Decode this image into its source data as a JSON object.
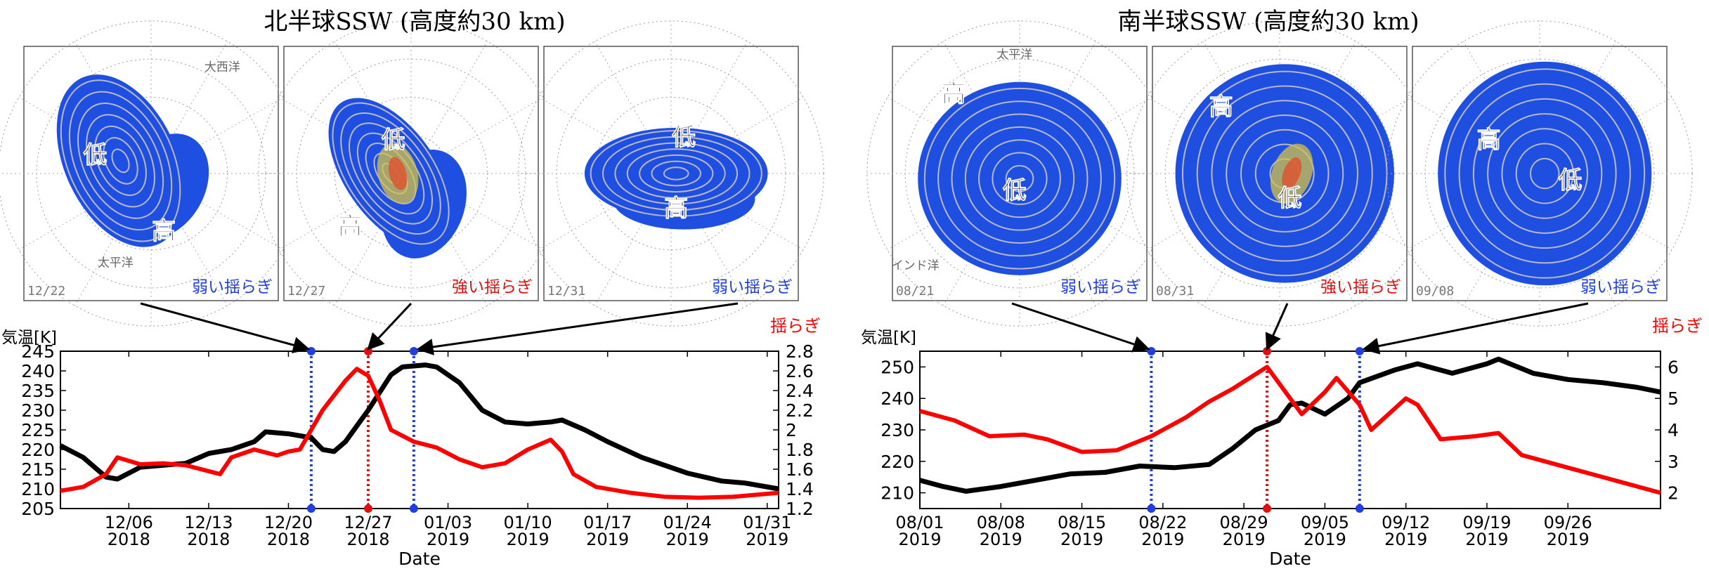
{
  "figure": {
    "labels": {
      "shake": "揺らぎ",
      "temp": "気温[K]",
      "date": "Date",
      "weak": "弱い揺らぎ",
      "strong": "強い揺らぎ",
      "low": "低",
      "high": "高"
    },
    "colors": {
      "temperature": "#000000",
      "fluctuation": "#ff0000",
      "weak": "#1f3fe0",
      "strong": "#e01010",
      "map_fill": "#1e4fe0"
    }
  },
  "panels": [
    {
      "title": "北半球SSW (高度約30 km)",
      "maps": [
        {
          "date": "12/22",
          "strength": "weak",
          "labels": [
            "低",
            "高",
            "大西洋",
            "太平洋"
          ]
        },
        {
          "date": "12/27",
          "strength": "strong",
          "labels": [
            "低",
            "高"
          ]
        },
        {
          "date": "12/31",
          "strength": "weak",
          "labels": [
            "低",
            "高"
          ]
        }
      ]
    },
    {
      "title": "南半球SSW (高度約30 km)",
      "maps": [
        {
          "date": "08/21",
          "strength": "weak",
          "labels": [
            "高",
            "低",
            "太平洋",
            "インド洋"
          ]
        },
        {
          "date": "08/31",
          "strength": "strong",
          "labels": [
            "高",
            "低"
          ]
        },
        {
          "date": "09/08",
          "strength": "weak",
          "labels": [
            "高",
            "低"
          ]
        }
      ]
    }
  ],
  "chart_data": [
    {
      "type": "line",
      "xlabel": "Date",
      "ylabel": "気温[K]",
      "y2label": "揺らぎ",
      "xlim": [
        "2018-11-30",
        "2019-02-01"
      ],
      "ylim": [
        205,
        245
      ],
      "y2lim": [
        1.2,
        2.8
      ],
      "yticks": [
        205,
        210,
        215,
        220,
        225,
        230,
        235,
        240,
        245
      ],
      "y2ticks": [
        1.2,
        1.4,
        1.6,
        1.8,
        2.0,
        2.2,
        2.4,
        2.6,
        2.8
      ],
      "y2ticklabels": [
        "1.2",
        "1.4",
        "1.6",
        "1.8",
        "2",
        "2.2",
        "2.4",
        "2.6",
        "2.8"
      ],
      "xticks": [
        {
          "date": "2018-12-06",
          "label": "12/06",
          "year": "2018"
        },
        {
          "date": "2018-12-13",
          "label": "12/13",
          "year": "2018"
        },
        {
          "date": "2018-12-20",
          "label": "12/20",
          "year": "2018"
        },
        {
          "date": "2018-12-27",
          "label": "12/27",
          "year": "2018"
        },
        {
          "date": "2019-01-03",
          "label": "01/03",
          "year": "2019"
        },
        {
          "date": "2019-01-10",
          "label": "01/10",
          "year": "2019"
        },
        {
          "date": "2019-01-17",
          "label": "01/17",
          "year": "2019"
        },
        {
          "date": "2019-01-24",
          "label": "01/24",
          "year": "2019"
        },
        {
          "date": "2019-01-31",
          "label": "01/31",
          "year": "2019"
        }
      ],
      "markers": [
        {
          "date": "2018-12-22",
          "strength": "weak"
        },
        {
          "date": "2018-12-27",
          "strength": "strong"
        },
        {
          "date": "2018-12-31",
          "strength": "weak"
        }
      ],
      "series": [
        {
          "axis": "left",
          "color": "#000000",
          "points": [
            [
              "2018-11-30",
              221
            ],
            [
              "2018-12-02",
              218
            ],
            [
              "2018-12-04",
              213
            ],
            [
              "2018-12-05",
              212.5
            ],
            [
              "2018-12-07",
              215.5
            ],
            [
              "2018-12-09",
              216
            ],
            [
              "2018-12-11",
              216.5
            ],
            [
              "2018-12-13",
              219
            ],
            [
              "2018-12-15",
              220
            ],
            [
              "2018-12-17",
              222
            ],
            [
              "2018-12-18",
              224.5
            ],
            [
              "2018-12-20",
              224
            ],
            [
              "2018-12-22",
              223
            ],
            [
              "2018-12-23",
              220
            ],
            [
              "2018-12-24",
              219.5
            ],
            [
              "2018-12-25",
              222
            ],
            [
              "2018-12-27",
              230
            ],
            [
              "2018-12-29",
              239
            ],
            [
              "2018-12-30",
              241
            ],
            [
              "2019-01-01",
              241.5
            ],
            [
              "2019-01-02",
              241
            ],
            [
              "2019-01-04",
              237
            ],
            [
              "2019-01-06",
              230
            ],
            [
              "2019-01-08",
              227
            ],
            [
              "2019-01-10",
              226.5
            ],
            [
              "2019-01-12",
              227
            ],
            [
              "2019-01-13",
              227.5
            ],
            [
              "2019-01-15",
              225
            ],
            [
              "2019-01-17",
              222
            ],
            [
              "2019-01-20",
              218
            ],
            [
              "2019-01-24",
              214
            ],
            [
              "2019-01-27",
              212
            ],
            [
              "2019-01-29",
              211.5
            ],
            [
              "2019-02-01",
              210
            ]
          ]
        },
        {
          "axis": "right",
          "color": "#ff0000",
          "points": [
            [
              "2018-11-30",
              1.38
            ],
            [
              "2018-12-02",
              1.42
            ],
            [
              "2018-12-04",
              1.55
            ],
            [
              "2018-12-05",
              1.72
            ],
            [
              "2018-12-07",
              1.65
            ],
            [
              "2018-12-09",
              1.66
            ],
            [
              "2018-12-11",
              1.64
            ],
            [
              "2018-12-13",
              1.58
            ],
            [
              "2018-12-14",
              1.55
            ],
            [
              "2018-12-15",
              1.72
            ],
            [
              "2018-12-17",
              1.8
            ],
            [
              "2018-12-19",
              1.74
            ],
            [
              "2018-12-20",
              1.78
            ],
            [
              "2018-12-21",
              1.8
            ],
            [
              "2018-12-23",
              2.2
            ],
            [
              "2018-12-24",
              2.35
            ],
            [
              "2018-12-25",
              2.5
            ],
            [
              "2018-12-26",
              2.62
            ],
            [
              "2018-12-27",
              2.55
            ],
            [
              "2018-12-28",
              2.3
            ],
            [
              "2018-12-29",
              2.0
            ],
            [
              "2018-12-31",
              1.88
            ],
            [
              "2019-01-02",
              1.82
            ],
            [
              "2019-01-04",
              1.7
            ],
            [
              "2019-01-06",
              1.62
            ],
            [
              "2019-01-08",
              1.66
            ],
            [
              "2019-01-10",
              1.8
            ],
            [
              "2019-01-12",
              1.9
            ],
            [
              "2019-01-13",
              1.78
            ],
            [
              "2019-01-14",
              1.55
            ],
            [
              "2019-01-16",
              1.42
            ],
            [
              "2019-01-19",
              1.36
            ],
            [
              "2019-01-22",
              1.32
            ],
            [
              "2019-01-25",
              1.31
            ],
            [
              "2019-01-28",
              1.32
            ],
            [
              "2019-02-01",
              1.36
            ]
          ]
        }
      ]
    },
    {
      "type": "line",
      "xlabel": "Date",
      "ylabel": "気温[K]",
      "y2label": "揺らぎ",
      "xlim": [
        "2019-08-01",
        "2019-10-04"
      ],
      "ylim": [
        205,
        255
      ],
      "y2lim": [
        1.5,
        6.5
      ],
      "yticks": [
        210,
        220,
        230,
        240,
        250
      ],
      "y2ticks": [
        2,
        3,
        4,
        5,
        6
      ],
      "y2ticklabels": [
        "2",
        "3",
        "4",
        "5",
        "6"
      ],
      "xticks": [
        {
          "date": "2019-08-01",
          "label": "08/01",
          "year": "2019"
        },
        {
          "date": "2019-08-08",
          "label": "08/08",
          "year": "2019"
        },
        {
          "date": "2019-08-15",
          "label": "08/15",
          "year": "2019"
        },
        {
          "date": "2019-08-22",
          "label": "08/22",
          "year": "2019"
        },
        {
          "date": "2019-08-29",
          "label": "08/29",
          "year": "2019"
        },
        {
          "date": "2019-09-05",
          "label": "09/05",
          "year": "2019"
        },
        {
          "date": "2019-09-12",
          "label": "09/12",
          "year": "2019"
        },
        {
          "date": "2019-09-19",
          "label": "09/19",
          "year": "2019"
        },
        {
          "date": "2019-09-26",
          "label": "09/26",
          "year": "2019"
        }
      ],
      "markers": [
        {
          "date": "2019-08-21",
          "strength": "weak"
        },
        {
          "date": "2019-08-31",
          "strength": "strong"
        },
        {
          "date": "2019-09-08",
          "strength": "weak"
        }
      ],
      "series": [
        {
          "axis": "left",
          "color": "#000000",
          "points": [
            [
              "2019-08-01",
              214
            ],
            [
              "2019-08-03",
              212
            ],
            [
              "2019-08-05",
              210.5
            ],
            [
              "2019-08-08",
              212
            ],
            [
              "2019-08-11",
              214
            ],
            [
              "2019-08-14",
              216
            ],
            [
              "2019-08-17",
              216.5
            ],
            [
              "2019-08-20",
              218.5
            ],
            [
              "2019-08-23",
              218
            ],
            [
              "2019-08-26",
              219
            ],
            [
              "2019-08-28",
              224
            ],
            [
              "2019-08-30",
              230
            ],
            [
              "2019-09-01",
              233
            ],
            [
              "2019-09-02",
              238
            ],
            [
              "2019-09-03",
              238.5
            ],
            [
              "2019-09-05",
              235
            ],
            [
              "2019-09-07",
              240
            ],
            [
              "2019-09-08",
              245
            ],
            [
              "2019-09-11",
              249
            ],
            [
              "2019-09-13",
              251
            ],
            [
              "2019-09-16",
              248
            ],
            [
              "2019-09-19",
              251
            ],
            [
              "2019-09-20",
              252.5
            ],
            [
              "2019-09-23",
              248
            ],
            [
              "2019-09-26",
              246
            ],
            [
              "2019-09-29",
              245
            ],
            [
              "2019-10-02",
              243.5
            ],
            [
              "2019-10-04",
              242
            ]
          ]
        },
        {
          "axis": "right",
          "color": "#ff0000",
          "points": [
            [
              "2019-08-01",
              4.6
            ],
            [
              "2019-08-04",
              4.3
            ],
            [
              "2019-08-07",
              3.8
            ],
            [
              "2019-08-10",
              3.85
            ],
            [
              "2019-08-12",
              3.7
            ],
            [
              "2019-08-15",
              3.3
            ],
            [
              "2019-08-18",
              3.35
            ],
            [
              "2019-08-21",
              3.8
            ],
            [
              "2019-08-24",
              4.4
            ],
            [
              "2019-08-26",
              4.9
            ],
            [
              "2019-08-28",
              5.3
            ],
            [
              "2019-08-31",
              6.0
            ],
            [
              "2019-09-02",
              5.0
            ],
            [
              "2019-09-03",
              4.5
            ],
            [
              "2019-09-05",
              5.2
            ],
            [
              "2019-09-06",
              5.65
            ],
            [
              "2019-09-08",
              4.8
            ],
            [
              "2019-09-09",
              4.0
            ],
            [
              "2019-09-12",
              5.0
            ],
            [
              "2019-09-13",
              4.8
            ],
            [
              "2019-09-15",
              3.7
            ],
            [
              "2019-09-18",
              3.8
            ],
            [
              "2019-09-20",
              3.9
            ],
            [
              "2019-09-22",
              3.2
            ],
            [
              "2019-09-26",
              2.8
            ],
            [
              "2019-09-30",
              2.4
            ],
            [
              "2019-10-04",
              2.0
            ]
          ]
        }
      ]
    }
  ]
}
